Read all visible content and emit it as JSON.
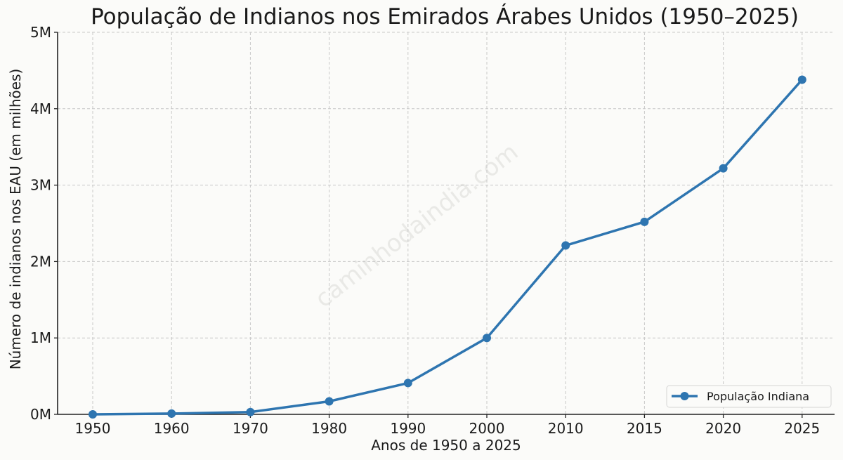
{
  "chart_data": {
    "type": "line",
    "title": "População de Indianos nos Emirados Árabes Unidos (1950–2025)",
    "xlabel": "Anos de 1950 a 2025",
    "ylabel": "Número de indianos nos EAU (em milhões)",
    "categories": [
      "1950",
      "1960",
      "1970",
      "1980",
      "1990",
      "2000",
      "2010",
      "2015",
      "2020",
      "2025"
    ],
    "series": [
      {
        "name": "População Indiana",
        "color": "#2e75b0",
        "values": [
          0.0,
          0.01,
          0.03,
          0.17,
          0.41,
          1.0,
          2.21,
          2.52,
          3.22,
          4.38
        ]
      }
    ],
    "ylim": [
      0,
      5
    ],
    "yticks": [
      0,
      1,
      2,
      3,
      4,
      5
    ],
    "ytick_labels": [
      "0M",
      "1M",
      "2M",
      "3M",
      "4M",
      "5M"
    ],
    "grid": true,
    "legend_position": "lower right",
    "watermark": "caminhodaindia.com"
  }
}
